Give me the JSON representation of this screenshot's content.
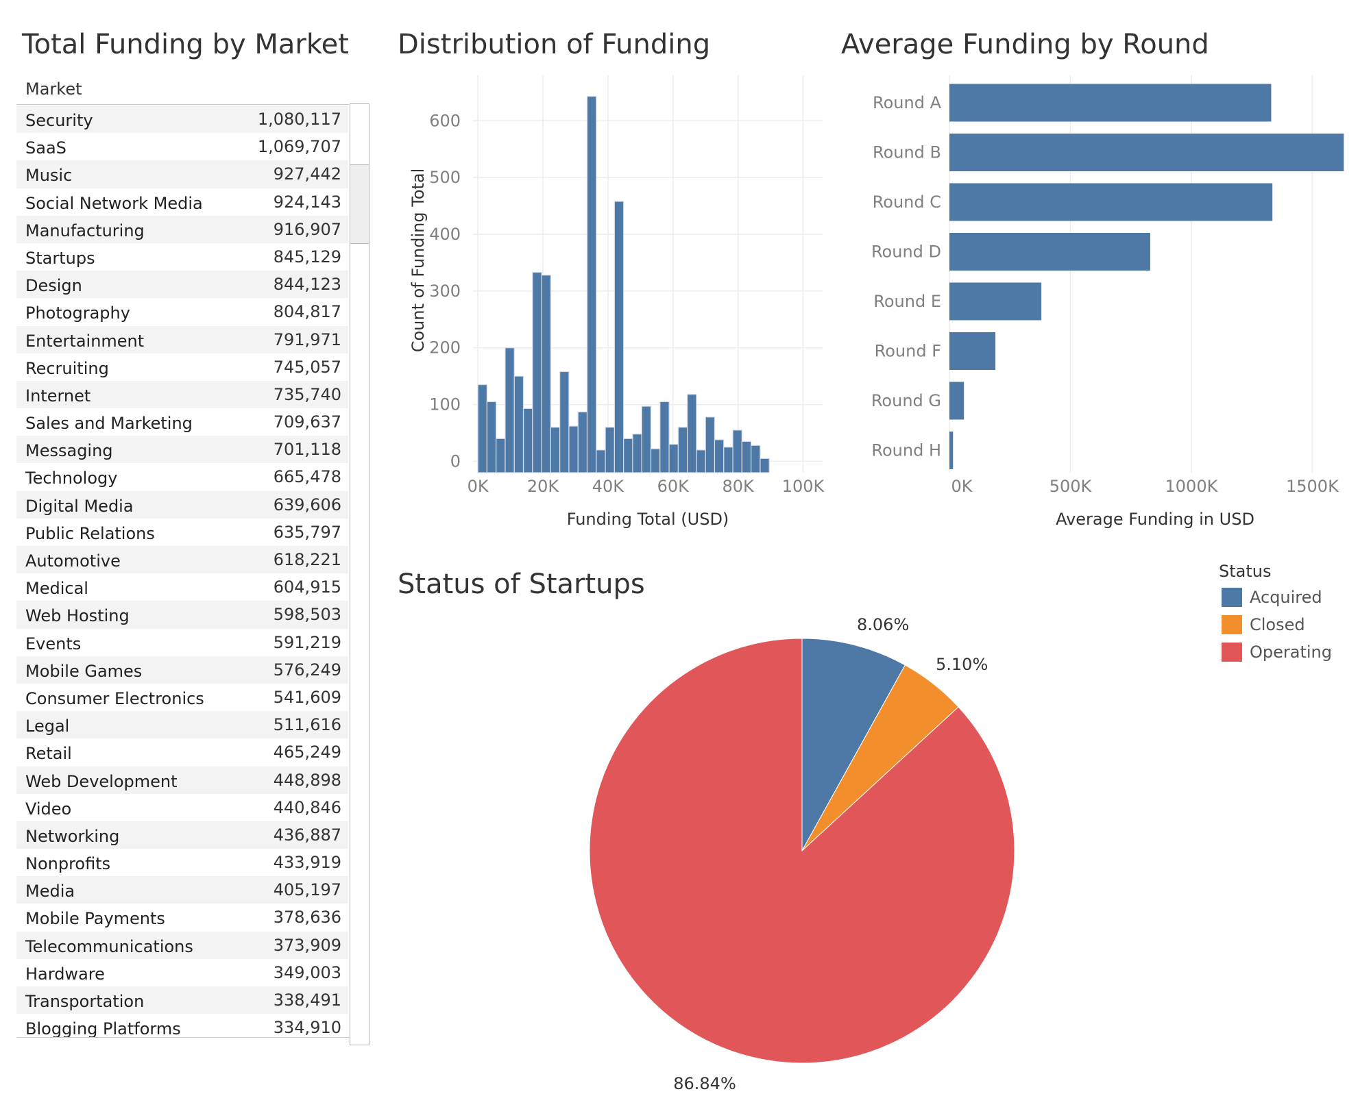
{
  "titles": {
    "market": "Total Funding by Market",
    "distribution": "Distribution of Funding",
    "rounds": "Average Funding by Round",
    "status": "Status of Startups"
  },
  "market_table": {
    "header": "Market",
    "rows": [
      {
        "market": "Security",
        "value": "1,080,117"
      },
      {
        "market": "SaaS",
        "value": "1,069,707"
      },
      {
        "market": "Music",
        "value": "927,442"
      },
      {
        "market": "Social Network Media",
        "value": "924,143"
      },
      {
        "market": "Manufacturing",
        "value": "916,907"
      },
      {
        "market": "Startups",
        "value": "845,129"
      },
      {
        "market": "Design",
        "value": "844,123"
      },
      {
        "market": "Photography",
        "value": "804,817"
      },
      {
        "market": "Entertainment",
        "value": "791,971"
      },
      {
        "market": "Recruiting",
        "value": "745,057"
      },
      {
        "market": "Internet",
        "value": "735,740"
      },
      {
        "market": "Sales and Marketing",
        "value": "709,637"
      },
      {
        "market": "Messaging",
        "value": "701,118"
      },
      {
        "market": "Technology",
        "value": "665,478"
      },
      {
        "market": "Digital Media",
        "value": "639,606"
      },
      {
        "market": "Public Relations",
        "value": "635,797"
      },
      {
        "market": "Automotive",
        "value": "618,221"
      },
      {
        "market": "Medical",
        "value": "604,915"
      },
      {
        "market": "Web Hosting",
        "value": "598,503"
      },
      {
        "market": "Events",
        "value": "591,219"
      },
      {
        "market": "Mobile Games",
        "value": "576,249"
      },
      {
        "market": "Consumer Electronics",
        "value": "541,609"
      },
      {
        "market": "Legal",
        "value": "511,616"
      },
      {
        "market": "Retail",
        "value": "465,249"
      },
      {
        "market": "Web Development",
        "value": "448,898"
      },
      {
        "market": "Video",
        "value": "440,846"
      },
      {
        "market": "Networking",
        "value": "436,887"
      },
      {
        "market": "Nonprofits",
        "value": "433,919"
      },
      {
        "market": "Media",
        "value": "405,197"
      },
      {
        "market": "Mobile Payments",
        "value": "378,636"
      },
      {
        "market": "Telecommunications",
        "value": "373,909"
      },
      {
        "market": "Hardware",
        "value": "349,003"
      },
      {
        "market": "Transportation",
        "value": "338,491"
      },
      {
        "market": "Blogging Platforms",
        "value": "334,910"
      }
    ]
  },
  "chart_data": [
    {
      "type": "bar",
      "title": "Distribution of Funding",
      "xlabel": "Funding Total (USD)",
      "ylabel": "Count of Funding Total",
      "bin_width": 2800,
      "x_start": 0,
      "values": [
        135,
        105,
        40,
        200,
        150,
        93,
        333,
        328,
        60,
        158,
        62,
        87,
        643,
        20,
        60,
        458,
        40,
        48,
        97,
        22,
        105,
        30,
        60,
        118,
        20,
        78,
        38,
        25,
        55,
        35,
        28,
        5
      ],
      "ylim": [
        -20,
        680
      ],
      "yticks": [
        0,
        100,
        200,
        300,
        400,
        500,
        600
      ],
      "xlim": [
        -1500,
        106000
      ],
      "xticks": [
        0,
        20000,
        40000,
        60000,
        80000,
        100000
      ],
      "xtick_labels": [
        "0K",
        "20K",
        "40K",
        "60K",
        "80K",
        "100K"
      ],
      "color": "#4e79a7",
      "grid": true
    },
    {
      "type": "bar",
      "orientation": "horizontal",
      "title": "Average Funding by Round",
      "xlabel": "Average Funding in USD",
      "categories": [
        "Round A",
        "Round B",
        "Round C",
        "Round D",
        "Round E",
        "Round F",
        "Round G",
        "Round H"
      ],
      "values": [
        1330000,
        1630000,
        1335000,
        830000,
        380000,
        190000,
        60000,
        15000
      ],
      "xlim": [
        0,
        1700000
      ],
      "xticks": [
        0,
        500000,
        1000000,
        1500000
      ],
      "xtick_labels": [
        "0K",
        "500K",
        "1000K",
        "1500K"
      ],
      "color": "#4e79a7",
      "grid": true
    },
    {
      "type": "pie",
      "title": "Status of Startups",
      "legend_title": "Status",
      "legend_position": "right",
      "slices": [
        {
          "label": "Acquired",
          "value": 8.06,
          "text": "8.06%",
          "color": "#4e79a7"
        },
        {
          "label": "Closed",
          "value": 5.1,
          "text": "5.10%",
          "color": "#f28e2b"
        },
        {
          "label": "Operating",
          "value": 86.84,
          "text": "86.84%",
          "color": "#e15759"
        }
      ]
    }
  ]
}
